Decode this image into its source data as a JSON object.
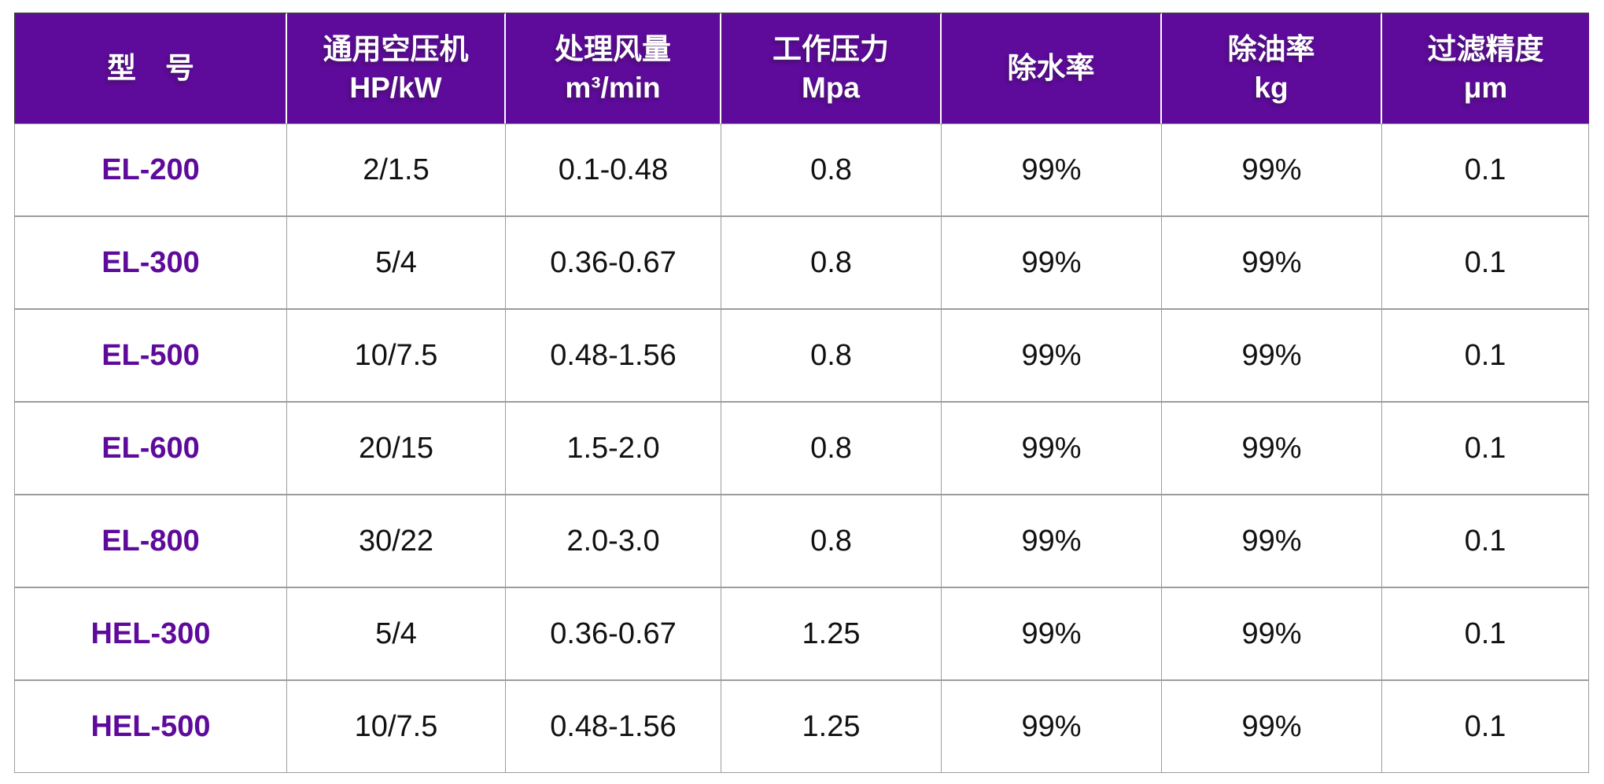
{
  "colors": {
    "header_bg": "#5E0A9B",
    "header_text": "#FFFFFF",
    "model_text": "#5E0A9B",
    "body_text": "#111111",
    "grid_line": "#9C9C9C",
    "outer_border_dark": "#3B3B3B"
  },
  "header": {
    "cells": [
      {
        "line1": "型　号",
        "line2": ""
      },
      {
        "line1": "通用空压机",
        "line2": "HP/kW"
      },
      {
        "line1": "处理风量",
        "line2": "m³/min"
      },
      {
        "line1": "工作压力",
        "line2": "Mpa"
      },
      {
        "line1": "除水率",
        "line2": ""
      },
      {
        "line1": "除油率",
        "line2": "kg"
      },
      {
        "line1": "过滤精度",
        "line2": "μm"
      }
    ]
  },
  "chart_data": {
    "type": "table",
    "columns": [
      "型　号",
      "通用空压机 HP/kW",
      "处理风量 m³/min",
      "工作压力 Mpa",
      "除水率",
      "除油率 kg",
      "过滤精度 μm"
    ],
    "rows": [
      [
        "EL-200",
        "2/1.5",
        "0.1-0.48",
        "0.8",
        "99%",
        "99%",
        "0.1"
      ],
      [
        "EL-300",
        "5/4",
        "0.36-0.67",
        "0.8",
        "99%",
        "99%",
        "0.1"
      ],
      [
        "EL-500",
        "10/7.5",
        "0.48-1.56",
        "0.8",
        "99%",
        "99%",
        "0.1"
      ],
      [
        "EL-600",
        "20/15",
        "1.5-2.0",
        "0.8",
        "99%",
        "99%",
        "0.1"
      ],
      [
        "EL-800",
        "30/22",
        "2.0-3.0",
        "0.8",
        "99%",
        "99%",
        "0.1"
      ],
      [
        "HEL-300",
        "5/4",
        "0.36-0.67",
        "1.25",
        "99%",
        "99%",
        "0.1"
      ],
      [
        "HEL-500",
        "10/7.5",
        "0.48-1.56",
        "1.25",
        "99%",
        "99%",
        "0.1"
      ]
    ]
  }
}
